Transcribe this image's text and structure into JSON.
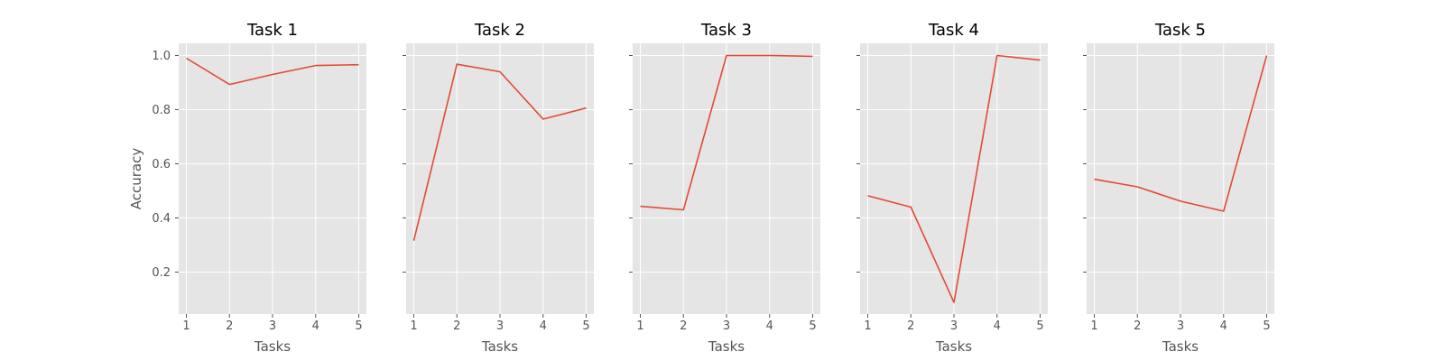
{
  "chart_data": [
    {
      "type": "line",
      "title": "Task 1",
      "x": [
        1,
        2,
        3,
        4,
        5
      ],
      "series": [
        {
          "name": "Accuracy",
          "values": [
            0.99,
            0.893,
            0.93,
            0.963,
            0.966
          ]
        }
      ],
      "xlabel": "Tasks",
      "ylabel": "Accuracy",
      "ylim": [
        0.045,
        1.045
      ],
      "yticks": [
        0.2,
        0.4,
        0.6,
        0.8,
        1.0
      ],
      "ytick_labels": [
        "0.2",
        "0.4",
        "0.6",
        "0.8",
        "1.0"
      ],
      "xtick_labels": [
        "1",
        "2",
        "3",
        "4",
        "5"
      ],
      "grid": true
    },
    {
      "type": "line",
      "title": "Task 2",
      "x": [
        1,
        2,
        3,
        4,
        5
      ],
      "series": [
        {
          "name": "Accuracy",
          "values": [
            0.316,
            0.968,
            0.94,
            0.765,
            0.806
          ]
        }
      ],
      "xlabel": "Tasks",
      "ylabel": "",
      "ylim": [
        0.045,
        1.045
      ],
      "yticks": [
        0.2,
        0.4,
        0.6,
        0.8,
        1.0
      ],
      "ytick_labels": [
        "",
        "",
        "",
        "",
        ""
      ],
      "xtick_labels": [
        "1",
        "2",
        "3",
        "4",
        "5"
      ],
      "grid": true
    },
    {
      "type": "line",
      "title": "Task 3",
      "x": [
        1,
        2,
        3,
        4,
        5
      ],
      "series": [
        {
          "name": "Accuracy",
          "values": [
            0.443,
            0.43,
            1.0,
            1.0,
            0.997
          ]
        }
      ],
      "xlabel": "Tasks",
      "ylabel": "",
      "ylim": [
        0.045,
        1.045
      ],
      "yticks": [
        0.2,
        0.4,
        0.6,
        0.8,
        1.0
      ],
      "ytick_labels": [
        "",
        "",
        "",
        "",
        ""
      ],
      "xtick_labels": [
        "1",
        "2",
        "3",
        "4",
        "5"
      ],
      "grid": true
    },
    {
      "type": "line",
      "title": "Task 4",
      "x": [
        1,
        2,
        3,
        4,
        5
      ],
      "series": [
        {
          "name": "Accuracy",
          "values": [
            0.482,
            0.44,
            0.088,
            1.0,
            0.983
          ]
        }
      ],
      "xlabel": "Tasks",
      "ylabel": "",
      "ylim": [
        0.045,
        1.045
      ],
      "yticks": [
        0.2,
        0.4,
        0.6,
        0.8,
        1.0
      ],
      "ytick_labels": [
        "",
        "",
        "",
        "",
        ""
      ],
      "xtick_labels": [
        "1",
        "2",
        "3",
        "4",
        "5"
      ],
      "grid": true
    },
    {
      "type": "line",
      "title": "Task 5",
      "x": [
        1,
        2,
        3,
        4,
        5
      ],
      "series": [
        {
          "name": "Accuracy",
          "values": [
            0.543,
            0.515,
            0.462,
            0.425,
            1.0
          ]
        }
      ],
      "xlabel": "Tasks",
      "ylabel": "",
      "ylim": [
        0.045,
        1.045
      ],
      "yticks": [
        0.2,
        0.4,
        0.6,
        0.8,
        1.0
      ],
      "ytick_labels": [
        "",
        "",
        "",
        "",
        ""
      ],
      "xtick_labels": [
        "1",
        "2",
        "3",
        "4",
        "5"
      ],
      "grid": true
    }
  ],
  "colors": {
    "line": "#e24a33",
    "panel_background": "#e5e5e5",
    "grid": "#ffffff",
    "text": "#555555"
  }
}
